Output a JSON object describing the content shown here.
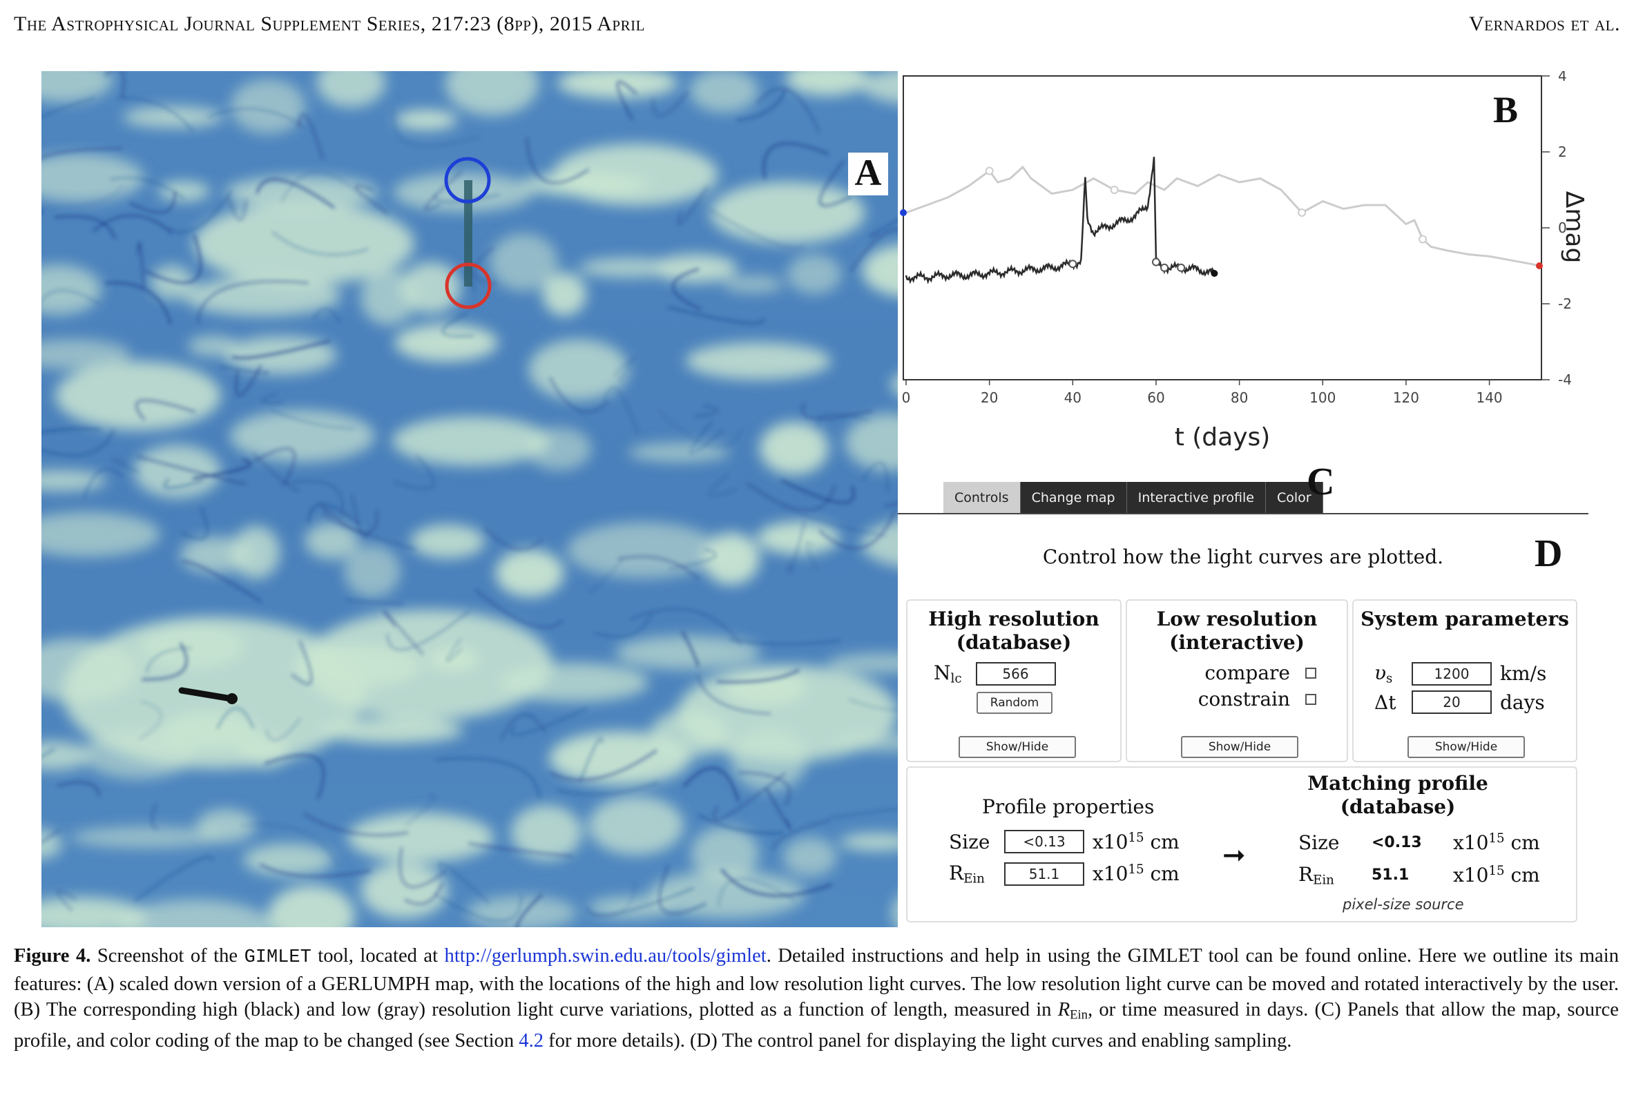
{
  "header": {
    "journal": "The Astrophysical Journal Supplement Series, 217:23 (8pp), 2015 April",
    "authors": "Vernardos et al."
  },
  "colors": {
    "map_light": "#cbe6d1",
    "map_dark": "#3f74b3",
    "caustic": "#1f3f8c",
    "high_res_circle": "#1e3fd6",
    "low_res_circle": "#d8352b",
    "high_res_curve": "#2b2b2b",
    "low_res_curve": "#cccccc",
    "tab_active_bg": "#cfcfcf",
    "tab_dark_bg": "#2c2c2c",
    "link": "#1a35d6"
  },
  "panel_a": {
    "label": "A"
  },
  "panel_b": {
    "label": "B",
    "chart_data": {
      "type": "line",
      "xlabel": "t (days)",
      "ylabel": "Δmag",
      "xlim": [
        0,
        152
      ],
      "ylim": [
        -4,
        4
      ],
      "x_ticks": [
        0,
        20,
        40,
        60,
        80,
        100,
        120,
        140
      ],
      "y_ticks": [
        4,
        2,
        0,
        -2,
        -4
      ],
      "y_axis_side": "right",
      "grid": false,
      "legend": "none",
      "series": [
        {
          "color": "#2b2b2b",
          "x": [
            0,
            5,
            10,
            15,
            20,
            25,
            30,
            35,
            40,
            42,
            43,
            43.5,
            45,
            50,
            55,
            58,
            59.5,
            60,
            60.5,
            62,
            66,
            70,
            74
          ],
          "y": [
            -1.3,
            -1.3,
            -1.25,
            -1.25,
            -1.2,
            -1.15,
            -1.1,
            -1.05,
            -0.95,
            -0.9,
            1.3,
            0.2,
            -0.1,
            0.1,
            0.3,
            0.6,
            1.8,
            -0.9,
            -1.0,
            -1.05,
            -1.05,
            -1.1,
            -1.2
          ]
        },
        {
          "color": "#cccccc",
          "x": [
            0,
            5,
            10,
            15,
            20,
            22,
            25,
            28,
            30,
            35,
            40,
            45,
            50,
            55,
            58,
            62,
            65,
            70,
            75,
            80,
            85,
            90,
            95,
            100,
            105,
            110,
            115,
            118,
            120,
            122,
            124,
            126,
            130,
            135,
            140,
            145,
            150,
            152
          ],
          "y": [
            0.4,
            0.6,
            0.8,
            1.1,
            1.5,
            1.2,
            1.3,
            1.6,
            1.3,
            0.9,
            1.0,
            1.3,
            1.0,
            0.9,
            1.2,
            1.0,
            1.3,
            1.1,
            1.4,
            1.2,
            1.3,
            1.0,
            0.4,
            0.7,
            0.5,
            0.6,
            0.6,
            0.3,
            0.1,
            0.2,
            -0.3,
            -0.5,
            -0.6,
            -0.7,
            -0.75,
            -0.85,
            -0.95,
            -1.0
          ]
        }
      ]
    }
  },
  "panel_c": {
    "label": "C",
    "tabs": [
      {
        "label": "Controls",
        "state": "active"
      },
      {
        "label": "Change map",
        "state": "dark"
      },
      {
        "label": "Interactive profile",
        "state": "dark"
      },
      {
        "label": "Color",
        "state": "dark"
      }
    ]
  },
  "panel_d": {
    "label": "D",
    "caption": "Control how the light curves are plotted.",
    "high_res": {
      "title_line1": "High resolution",
      "title_line2": "(database)",
      "nlc_symbol": "N",
      "nlc_sub": "lc",
      "nlc_value": "566",
      "random_button": "Random",
      "show_hide": "Show/Hide"
    },
    "low_res": {
      "title_line1": "Low resolution",
      "title_line2": "(interactive)",
      "compare_label": "compare",
      "constrain_label": "constrain",
      "show_hide": "Show/Hide"
    },
    "system": {
      "title": "System parameters",
      "vs_symbol": "υ",
      "vs_sub": "s",
      "vs_value": "1200",
      "vs_unit": "km/s",
      "dt_symbol": "Δt",
      "dt_value": "20",
      "dt_unit": "days",
      "show_hide": "Show/Hide"
    },
    "profile": {
      "title": "Profile properties",
      "size_label": "Size",
      "size_value": "<0.13",
      "rein_symbol": "R",
      "rein_sub": "Ein",
      "rein_value": "51.1",
      "unit_base": "x10",
      "unit_exp": "15",
      "unit_tail": " cm",
      "arrow": "➞"
    },
    "matching": {
      "title_line1": "Matching profile",
      "title_line2": "(database)",
      "size_label": "Size",
      "size_value": "<0.13",
      "rein_symbol": "R",
      "rein_sub": "Ein",
      "rein_value": "51.1",
      "unit_base": "x10",
      "unit_exp": "15",
      "unit_tail": " cm",
      "note": "pixel-size source"
    }
  },
  "caption": {
    "label": "Figure 4.",
    "t1": " Screenshot of the ",
    "tool": "GIMLET",
    "t2": " tool, located at ",
    "url": "http://gerlumph.swin.edu.au/tools/gimlet",
    "t3": ". Detailed instructions and help in using the GIMLET tool can be found online. Here we outline its main features: (A) scaled down version of a GERLUMPH map, with the locations of the high and low resolution light curves. The low resolution light curve can be moved and rotated interactively by the user. (B) The corresponding high (black) and low (gray) resolution light curve variations, plotted as a function of length, measured in ",
    "rein_r": "R",
    "rein_sub": "Ein",
    "t4": ", or time measured in days. (C) Panels that allow the map, source profile, and color coding of the map to be changed (see Section ",
    "section": "4.2",
    "t5": " for more details). (D) The control panel for displaying the light curves and enabling sampling."
  }
}
